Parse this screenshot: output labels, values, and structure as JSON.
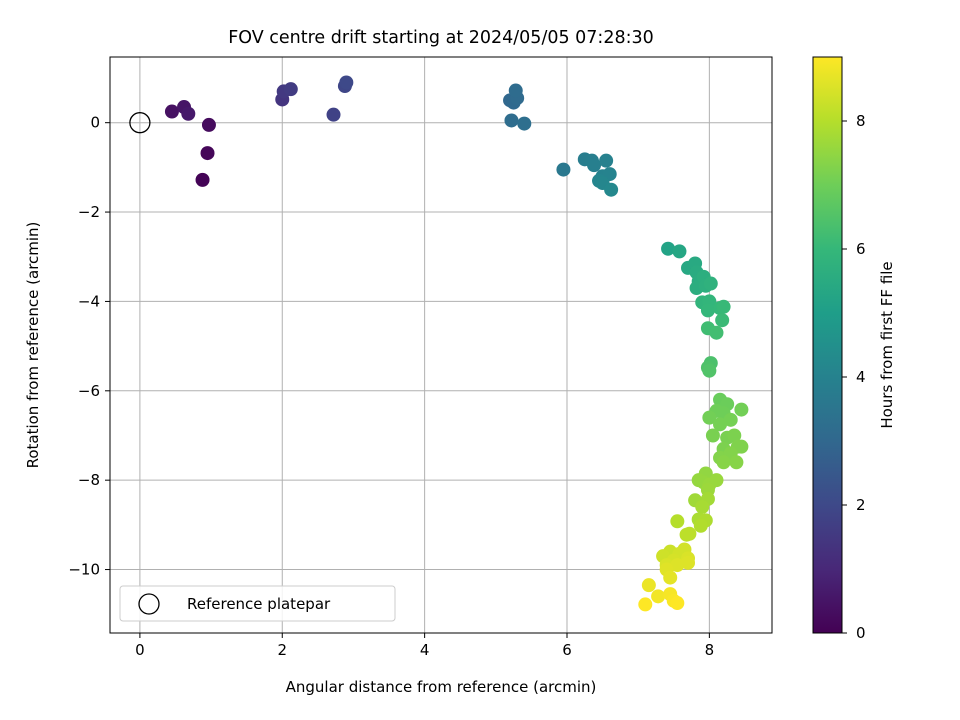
{
  "chart_data": {
    "type": "scatter",
    "title": "FOV centre drift starting at 2024/05/05 07:28:30",
    "xlabel": "Angular distance from reference (arcmin)",
    "ylabel": "Rotation from reference (arcmin)",
    "xlim": [
      -0.42,
      8.88
    ],
    "ylim": [
      -11.42,
      1.47
    ],
    "xticks": [
      0,
      2,
      4,
      6,
      8
    ],
    "yticks": [
      0,
      -2,
      -4,
      -6,
      -8,
      -10
    ],
    "grid": true,
    "legend": {
      "placement": "lower-left",
      "entries": [
        "Reference platepar"
      ]
    },
    "reference": {
      "x": 0,
      "y": 0
    },
    "colorbar": {
      "label": "Hours from first FF file",
      "range": [
        0,
        9
      ],
      "ticks": [
        0,
        2,
        4,
        6,
        8
      ],
      "colormap": "viridis"
    },
    "colormap_stops": [
      "#440154",
      "#482878",
      "#3e4989",
      "#31688e",
      "#26828e",
      "#1f9e89",
      "#35b779",
      "#6ece58",
      "#b5de2b",
      "#fde725"
    ],
    "points": [
      [
        0.88,
        -1.28,
        0.05
      ],
      [
        0.95,
        -0.68,
        0.15
      ],
      [
        0.97,
        -0.05,
        0.25
      ],
      [
        0.45,
        0.25,
        0.4
      ],
      [
        0.62,
        0.35,
        0.5
      ],
      [
        0.68,
        0.2,
        0.6
      ],
      [
        2.0,
        0.52,
        1.4
      ],
      [
        2.02,
        0.7,
        1.5
      ],
      [
        2.12,
        0.75,
        1.6
      ],
      [
        2.72,
        0.18,
        1.8
      ],
      [
        2.88,
        0.82,
        1.9
      ],
      [
        2.9,
        0.9,
        2.0
      ],
      [
        5.2,
        0.5,
        3.0
      ],
      [
        5.25,
        0.45,
        3.05
      ],
      [
        5.3,
        0.55,
        3.1
      ],
      [
        5.28,
        0.72,
        3.15
      ],
      [
        5.22,
        0.05,
        3.2
      ],
      [
        5.4,
        -0.02,
        3.25
      ],
      [
        5.95,
        -1.05,
        3.6
      ],
      [
        6.25,
        -0.82,
        3.8
      ],
      [
        6.35,
        -0.85,
        3.85
      ],
      [
        6.38,
        -0.95,
        3.9
      ],
      [
        6.55,
        -0.85,
        3.95
      ],
      [
        6.5,
        -1.2,
        4.0
      ],
      [
        6.6,
        -1.15,
        4.05
      ],
      [
        6.45,
        -1.3,
        4.1
      ],
      [
        6.5,
        -1.35,
        4.15
      ],
      [
        6.62,
        -1.5,
        4.2
      ],
      [
        7.42,
        -2.82,
        5.2
      ],
      [
        7.58,
        -2.88,
        5.3
      ],
      [
        7.7,
        -3.25,
        5.4
      ],
      [
        7.8,
        -3.15,
        5.45
      ],
      [
        7.82,
        -3.35,
        5.5
      ],
      [
        7.85,
        -3.55,
        5.55
      ],
      [
        7.82,
        -3.7,
        5.6
      ],
      [
        7.92,
        -3.45,
        5.65
      ],
      [
        7.95,
        -3.65,
        5.7
      ],
      [
        8.02,
        -3.6,
        5.75
      ],
      [
        7.9,
        -4.02,
        5.85
      ],
      [
        8.0,
        -4.0,
        5.9
      ],
      [
        7.98,
        -4.2,
        5.95
      ],
      [
        8.15,
        -4.15,
        6.0
      ],
      [
        8.2,
        -4.12,
        6.05
      ],
      [
        8.18,
        -4.42,
        6.1
      ],
      [
        7.98,
        -4.6,
        6.2
      ],
      [
        8.1,
        -4.7,
        6.25
      ],
      [
        8.02,
        -5.38,
        6.4
      ],
      [
        7.98,
        -5.48,
        6.45
      ],
      [
        8.0,
        -5.55,
        6.5
      ],
      [
        8.15,
        -6.2,
        6.9
      ],
      [
        8.25,
        -6.3,
        6.95
      ],
      [
        8.1,
        -6.45,
        7.0
      ],
      [
        8.2,
        -6.5,
        7.0
      ],
      [
        8.45,
        -6.42,
        7.05
      ],
      [
        8.0,
        -6.6,
        7.05
      ],
      [
        8.3,
        -6.65,
        7.1
      ],
      [
        8.15,
        -6.75,
        7.1
      ],
      [
        8.05,
        -7.0,
        7.15
      ],
      [
        8.25,
        -7.05,
        7.15
      ],
      [
        8.35,
        -7.0,
        7.2
      ],
      [
        8.2,
        -7.3,
        7.2
      ],
      [
        8.4,
        -7.25,
        7.25
      ],
      [
        8.45,
        -7.25,
        7.25
      ],
      [
        8.15,
        -7.5,
        7.3
      ],
      [
        8.3,
        -7.4,
        7.3
      ],
      [
        8.38,
        -7.6,
        7.35
      ],
      [
        8.2,
        -7.6,
        7.35
      ],
      [
        7.95,
        -7.85,
        7.5
      ],
      [
        7.85,
        -8.0,
        7.55
      ],
      [
        7.92,
        -8.05,
        7.55
      ],
      [
        8.0,
        -8.1,
        7.6
      ],
      [
        8.1,
        -8.0,
        7.6
      ],
      [
        7.98,
        -8.22,
        7.65
      ],
      [
        7.8,
        -8.45,
        7.7
      ],
      [
        7.98,
        -8.42,
        7.75
      ],
      [
        7.9,
        -8.6,
        7.8
      ],
      [
        7.85,
        -8.88,
        7.85
      ],
      [
        7.95,
        -8.9,
        7.9
      ],
      [
        7.88,
        -9.02,
        7.95
      ],
      [
        7.55,
        -8.92,
        8.0
      ],
      [
        7.72,
        -9.2,
        8.1
      ],
      [
        7.68,
        -9.22,
        8.1
      ],
      [
        7.45,
        -9.6,
        8.3
      ],
      [
        7.35,
        -9.7,
        8.35
      ],
      [
        7.58,
        -9.65,
        8.4
      ],
      [
        7.65,
        -9.55,
        8.4
      ],
      [
        7.5,
        -9.8,
        8.45
      ],
      [
        7.7,
        -9.75,
        8.5
      ],
      [
        7.4,
        -9.9,
        8.5
      ],
      [
        7.55,
        -9.9,
        8.55
      ],
      [
        7.7,
        -9.85,
        8.55
      ],
      [
        7.4,
        -10.0,
        8.6
      ],
      [
        7.45,
        -10.18,
        8.65
      ],
      [
        7.15,
        -10.35,
        8.75
      ],
      [
        7.28,
        -10.6,
        8.85
      ],
      [
        7.45,
        -10.55,
        8.9
      ],
      [
        7.5,
        -10.7,
        8.95
      ],
      [
        7.55,
        -10.75,
        9.0
      ],
      [
        7.1,
        -10.78,
        9.0
      ]
    ]
  }
}
